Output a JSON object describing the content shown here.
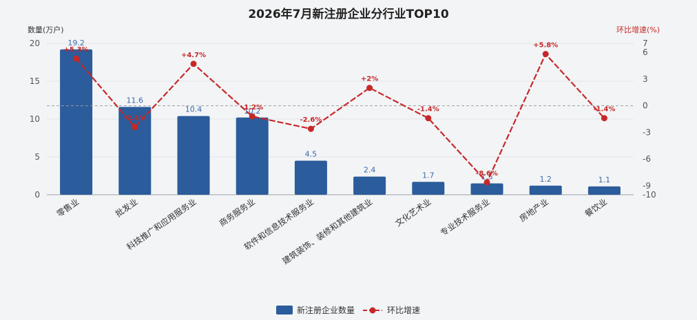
{
  "chart_data": {
    "type": "bar",
    "title": "2026年7月新注册企业分行业TOP10",
    "y_left_label": "数量(万户)",
    "y_right_label": "环比增速(%)",
    "y_left_range": [
      0,
      20
    ],
    "y_left_ticks": [
      "0",
      "5",
      "10",
      "15",
      "20"
    ],
    "y_right_range": [
      -10,
      7
    ],
    "y_right_ticks": [
      "-10",
      "-9",
      "-6",
      "-3",
      "0",
      "3",
      "6",
      "7"
    ],
    "categories": [
      "零售业",
      "批发业",
      "科技推广和应用服务业",
      "商务服务业",
      "软件和信息技术服务业",
      "建筑装饰、装修和其他建筑业",
      "文化艺术业",
      "专业技术服务业",
      "房地产业",
      "餐饮业"
    ],
    "series": [
      {
        "name": "新注册企业数量",
        "type": "bar",
        "color": "#2b5c9b",
        "values": [
          19.2,
          11.6,
          10.4,
          10.2,
          4.5,
          2.4,
          1.7,
          1.5,
          1.2,
          1.1
        ],
        "labels": [
          "19.2",
          "11.6",
          "10.4",
          "10.2",
          "4.5",
          "2.4",
          "1.7",
          "1.5",
          "1.2",
          "1.1"
        ]
      },
      {
        "name": "环比增速",
        "type": "line",
        "color": "#c62828",
        "values": [
          5.3,
          -2.4,
          4.7,
          -1.2,
          -2.6,
          2.0,
          -1.4,
          -8.6,
          5.8,
          -1.4
        ],
        "labels": [
          "+5.3%",
          "-2.4%",
          "+4.7%",
          "-1.2%",
          "-2.6%",
          "+2%",
          "-1.4%",
          "-8.6%",
          "+5.8%",
          "-1.4%"
        ]
      }
    ],
    "reference_line": {
      "axis": "right",
      "value": 0,
      "style": "dashed"
    },
    "legend_position": "bottom-center",
    "grid": true
  }
}
